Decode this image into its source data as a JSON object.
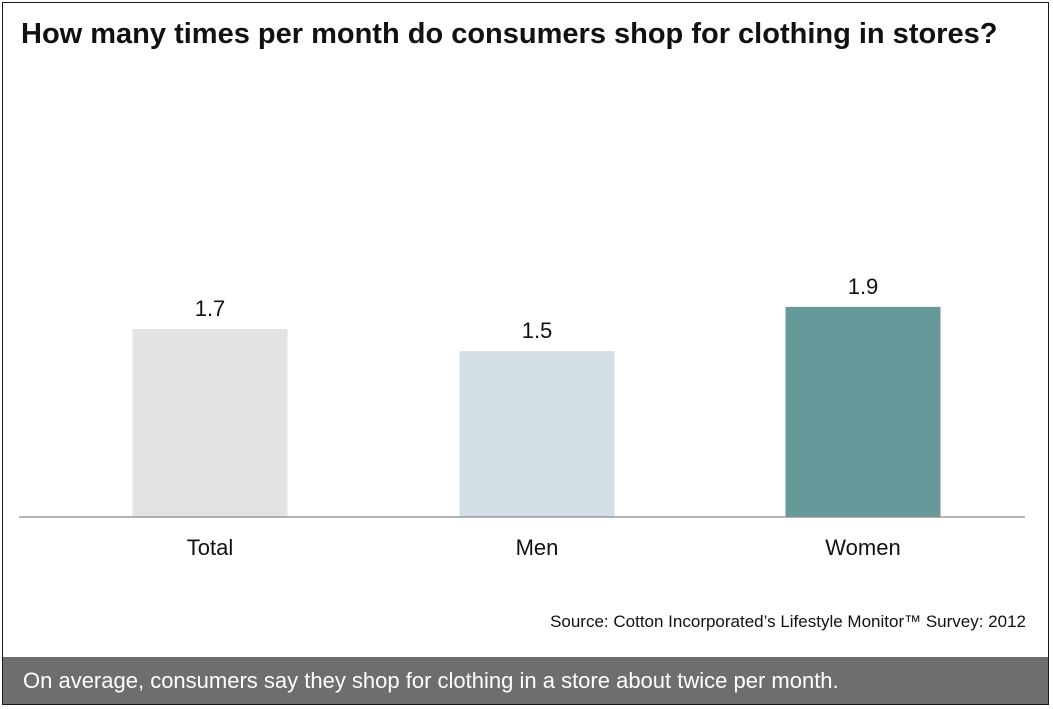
{
  "chart_data": {
    "type": "bar",
    "title": "How many times per month do consumers shop for clothing in stores?",
    "categories": [
      "Total",
      "Men",
      "Women"
    ],
    "values": [
      1.7,
      1.5,
      1.9
    ],
    "data_labels": [
      "1.7",
      "1.5",
      "1.9"
    ],
    "bar_colors": [
      "#e3e3e3",
      "#d3dfe4",
      "#669a9a"
    ],
    "axis_line_color": "#888888",
    "ylim": [
      0,
      3.4
    ],
    "grid": false,
    "legend": "none",
    "xlabel": "",
    "ylabel": ""
  },
  "source": "Source: Cotton Incorporated’s Lifestyle Monitor™ Survey: 2012",
  "footer": {
    "text": "On average, consumers say they shop for clothing in a store about twice per month.",
    "background": "#6e6e6e"
  }
}
